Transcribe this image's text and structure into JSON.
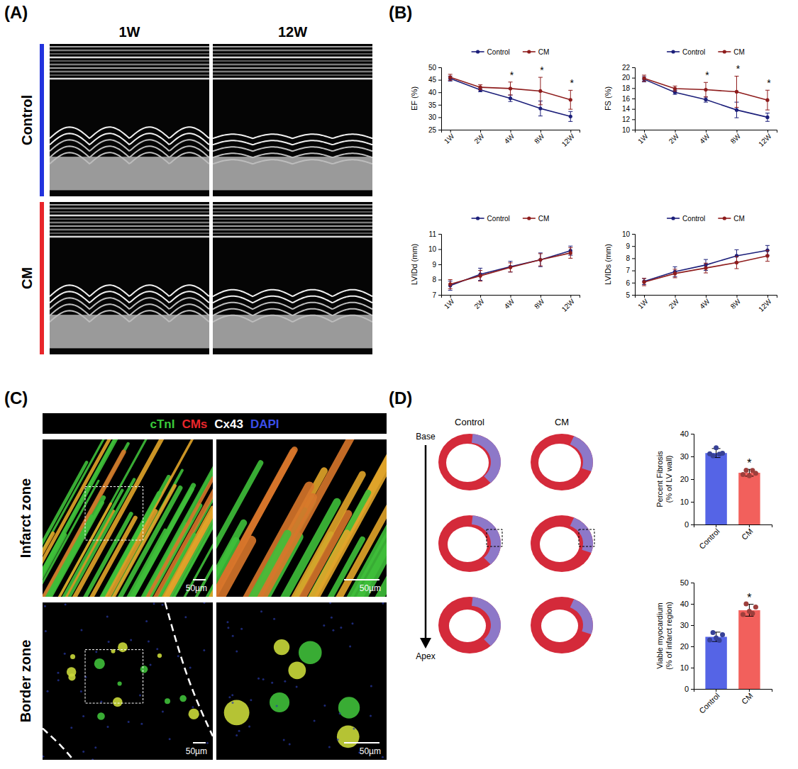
{
  "chart_data": [
    {
      "type": "line",
      "categories": [
        "1W",
        "2W",
        "4W",
        "8W",
        "12W"
      ],
      "y_label": "EF (%)",
      "ylim": [
        25,
        50
      ],
      "yticks": [
        25,
        30,
        35,
        40,
        45,
        50
      ],
      "legend": "top",
      "marker": "circle",
      "series": [
        {
          "name": "Control",
          "color": "#1c1f7a",
          "values": [
            45.5,
            41.0,
            37.6,
            33.5,
            30.3
          ],
          "error": [
            1.0,
            0.8,
            1.3,
            3.0,
            2.0
          ]
        },
        {
          "name": "CM",
          "color": "#8e1c1c",
          "values": [
            46.0,
            42.0,
            41.5,
            40.5,
            37.0
          ],
          "error": [
            1.2,
            1.0,
            2.6,
            5.5,
            3.8
          ]
        }
      ],
      "annotations": [
        {
          "x": "4W",
          "text": "*"
        },
        {
          "x": "8W",
          "text": "*"
        },
        {
          "x": "12W",
          "text": "*"
        }
      ]
    },
    {
      "type": "line",
      "categories": [
        "1W",
        "2W",
        "4W",
        "8W",
        "12W"
      ],
      "y_label": "FS (%)",
      "ylim": [
        10,
        22
      ],
      "yticks": [
        10,
        12,
        14,
        16,
        18,
        20,
        22
      ],
      "legend": "top",
      "marker": "circle",
      "series": [
        {
          "name": "Control",
          "color": "#1c1f7a",
          "values": [
            19.7,
            17.2,
            15.8,
            13.8,
            12.4
          ],
          "error": [
            0.5,
            0.4,
            0.5,
            1.5,
            0.8
          ]
        },
        {
          "name": "CM",
          "color": "#8e1c1c",
          "values": [
            19.9,
            17.9,
            17.7,
            17.3,
            15.7
          ],
          "error": [
            0.6,
            0.5,
            1.4,
            3.0,
            1.9
          ]
        }
      ],
      "annotations": [
        {
          "x": "4W",
          "text": "*"
        },
        {
          "x": "8W",
          "text": "*"
        },
        {
          "x": "12W",
          "text": "*"
        }
      ]
    },
    {
      "type": "line",
      "categories": [
        "1W",
        "2W",
        "4W",
        "8W",
        "12W"
      ],
      "y_label": "LVIDd (mm)",
      "ylim": [
        7,
        11
      ],
      "yticks": [
        7,
        8,
        9,
        10,
        11
      ],
      "legend": "top",
      "marker": "circle",
      "series": [
        {
          "name": "Control",
          "color": "#1c1f7a",
          "values": [
            7.6,
            8.35,
            8.85,
            9.3,
            9.9
          ],
          "error": [
            0.3,
            0.4,
            0.35,
            0.45,
            0.3
          ]
        },
        {
          "name": "CM",
          "color": "#8e1c1c",
          "values": [
            7.7,
            8.25,
            8.8,
            9.3,
            9.75
          ],
          "error": [
            0.3,
            0.35,
            0.3,
            0.4,
            0.35
          ]
        }
      ]
    },
    {
      "type": "line",
      "categories": [
        "1W",
        "2W",
        "4W",
        "8W",
        "12W"
      ],
      "y_label": "LVIDs (mm)",
      "ylim": [
        5,
        10
      ],
      "yticks": [
        5,
        6,
        7,
        8,
        9,
        10
      ],
      "legend": "top",
      "marker": "circle",
      "series": [
        {
          "name": "Control",
          "color": "#1c1f7a",
          "values": [
            6.1,
            6.9,
            7.45,
            8.2,
            8.65
          ],
          "error": [
            0.25,
            0.4,
            0.45,
            0.5,
            0.4
          ]
        },
        {
          "name": "CM",
          "color": "#8e1c1c",
          "values": [
            6.05,
            6.75,
            7.2,
            7.65,
            8.2
          ],
          "error": [
            0.3,
            0.35,
            0.4,
            0.5,
            0.45
          ]
        }
      ]
    },
    {
      "type": "bar",
      "categories": [
        "Control",
        "CM"
      ],
      "y_label": "Percent Fibrosis (% of LV wall)",
      "ylim": [
        0,
        40
      ],
      "yticks": [
        0,
        10,
        20,
        30,
        40
      ],
      "colors": [
        "#5564e6",
        "#f2605c"
      ],
      "values": [
        31.5,
        22.8
      ],
      "error": [
        2.0,
        1.5
      ],
      "points": [
        [
          31.2,
          30.3,
          33.8,
          31.0,
          31.4
        ],
        [
          22.0,
          23.9,
          21.5,
          23.8,
          22.6
        ]
      ],
      "annotations": [
        {
          "x": "CM",
          "text": "*"
        }
      ]
    },
    {
      "type": "bar",
      "categories": [
        "Control",
        "CM"
      ],
      "y_label": "Viable myocardium (% of infarct region)",
      "ylim": [
        0,
        50
      ],
      "yticks": [
        0,
        10,
        20,
        30,
        40,
        50
      ],
      "colors": [
        "#5564e6",
        "#f2605c"
      ],
      "values": [
        24.5,
        37.0
      ],
      "error": [
        2.2,
        2.8
      ],
      "points": [
        [
          23.0,
          26.5,
          24.0,
          22.8,
          25.5
        ],
        [
          35.0,
          40.0,
          36.5,
          35.5,
          38.5
        ]
      ],
      "annotations": [
        {
          "x": "CM",
          "text": "*"
        }
      ]
    }
  ],
  "figure": {
    "panel_labels": [
      "(A)",
      "(B)",
      "(C)",
      "(D)"
    ],
    "echo": {
      "columns": [
        "1W",
        "12W"
      ],
      "rows": [
        "Control",
        "CM"
      ],
      "row_colors": [
        "#2233dd",
        "#e8262b"
      ]
    },
    "staining": {
      "channels": [
        {
          "label": "cTnI",
          "color": "#39c93a"
        },
        {
          "label": "CMs",
          "color": "#e8262b"
        },
        {
          "label": "Cx43",
          "color": "#ffffff"
        },
        {
          "label": "DAPI",
          "color": "#3a4ee8"
        }
      ],
      "rows": [
        "Infarct zone",
        "Border zone"
      ],
      "scale_bar": "50µm"
    },
    "sections": {
      "columns": [
        "Control",
        "CM"
      ],
      "start": "Base",
      "end": "Apex"
    }
  }
}
